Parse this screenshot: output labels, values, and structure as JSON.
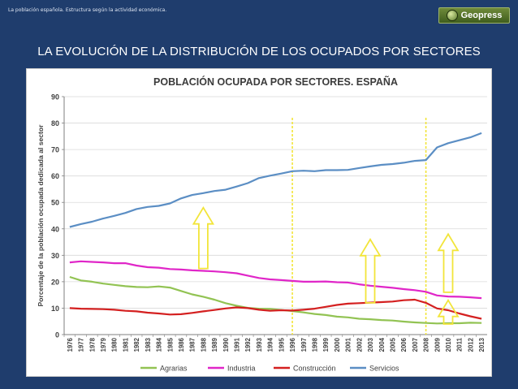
{
  "header": {
    "breadcrumb": "La población española. Estructura según la actividad económica.",
    "logo_text": "Geopress",
    "slide_title": "LA EVOLUCIÓN DE LA DISTRIBUCIÓN DE LOS OCUPADOS POR SECTORES"
  },
  "colors": {
    "background": "#1f3d6d",
    "agrarias": "#92c353",
    "industria": "#e026c8",
    "construccion": "#d42020",
    "servicios": "#5b8ec4",
    "markers": "#f2e53a"
  },
  "chart_data": {
    "type": "line",
    "title": "POBLACIÓN OCUPADA POR SECTORES. ESPAÑA",
    "xlabel": "",
    "ylabel": "Porcentaje de la población ocupada dedicada al sector",
    "ylim": [
      0,
      90
    ],
    "yticks": [
      0,
      10,
      20,
      30,
      40,
      50,
      60,
      70,
      80,
      90
    ],
    "grid": true,
    "legend_position": "bottom",
    "x": [
      "1976",
      "1977",
      "1978",
      "1979",
      "1980",
      "1981",
      "1982",
      "1983",
      "1984",
      "1985",
      "1986",
      "1987",
      "1988",
      "1989",
      "1990",
      "1991",
      "1992",
      "1993",
      "1994",
      "1995",
      "1996",
      "1997",
      "1998",
      "1999",
      "2000",
      "2001",
      "2002",
      "2003",
      "2004",
      "2005",
      "2006",
      "2007",
      "2008",
      "2009",
      "2010",
      "2011",
      "2012",
      "2013"
    ],
    "series": [
      {
        "name": "Agrarias",
        "values": [
          21.8,
          20.5,
          20.0,
          19.3,
          18.8,
          18.3,
          18.0,
          17.9,
          18.2,
          17.8,
          16.5,
          15.2,
          14.3,
          13.2,
          11.9,
          10.9,
          10.1,
          9.8,
          9.7,
          9.3,
          8.9,
          8.4,
          7.8,
          7.4,
          6.8,
          6.5,
          6.0,
          5.8,
          5.5,
          5.3,
          4.9,
          4.6,
          4.4,
          4.2,
          4.3,
          4.3,
          4.5,
          4.4
        ]
      },
      {
        "name": "Industria",
        "values": [
          27.3,
          27.7,
          27.5,
          27.3,
          27.0,
          27.0,
          26.1,
          25.5,
          25.3,
          24.8,
          24.6,
          24.3,
          24.1,
          23.9,
          23.6,
          23.2,
          22.3,
          21.4,
          20.9,
          20.6,
          20.3,
          20.0,
          20.0,
          20.1,
          19.8,
          19.7,
          19.0,
          18.5,
          18.1,
          17.7,
          17.2,
          16.8,
          16.2,
          14.8,
          14.4,
          14.3,
          14.1,
          13.8
        ]
      },
      {
        "name": "Construcción",
        "values": [
          10.0,
          9.8,
          9.7,
          9.6,
          9.4,
          9.0,
          8.8,
          8.3,
          8.0,
          7.6,
          7.7,
          8.2,
          8.8,
          9.3,
          9.9,
          10.3,
          10.0,
          9.4,
          9.0,
          9.2,
          9.1,
          9.4,
          9.8,
          10.5,
          11.2,
          11.7,
          11.9,
          12.1,
          12.3,
          12.5,
          13.0,
          13.2,
          12.0,
          9.9,
          9.2,
          8.0,
          6.9,
          6.0
        ]
      },
      {
        "name": "Servicios",
        "values": [
          40.7,
          41.8,
          42.7,
          43.9,
          44.9,
          46.0,
          47.5,
          48.3,
          48.7,
          49.6,
          51.5,
          52.8,
          53.5,
          54.3,
          54.8,
          56.0,
          57.3,
          59.2,
          60.1,
          60.9,
          61.8,
          62.0,
          61.8,
          62.2,
          62.2,
          62.3,
          63.0,
          63.6,
          64.2,
          64.5,
          65.0,
          65.7,
          66.0,
          70.8,
          72.4,
          73.5,
          74.6,
          76.2
        ]
      }
    ],
    "reference_years": [
      "1996",
      "2008"
    ],
    "arrows": [
      {
        "x": "1988",
        "from": 25,
        "to": 48
      },
      {
        "x": "2003",
        "from": 12,
        "to": 36
      },
      {
        "x": "2010",
        "from": 16,
        "to": 38
      },
      {
        "x": "2010",
        "from": 4,
        "to": 13
      }
    ]
  }
}
